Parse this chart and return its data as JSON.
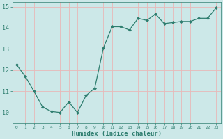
{
  "x": [
    0,
    1,
    2,
    3,
    4,
    5,
    6,
    7,
    8,
    9,
    10,
    11,
    12,
    13,
    14,
    15,
    16,
    17,
    18,
    19,
    20,
    21,
    22,
    23
  ],
  "y": [
    12.25,
    11.7,
    11.0,
    10.25,
    10.05,
    10.0,
    10.5,
    10.0,
    10.8,
    11.15,
    13.05,
    14.05,
    14.05,
    13.9,
    14.45,
    14.35,
    14.65,
    14.2,
    14.25,
    14.3,
    14.3,
    14.45,
    14.45,
    14.95
  ],
  "xlabel": "Humidex (Indice chaleur)",
  "ylim": [
    9.5,
    15.2
  ],
  "xlim": [
    -0.5,
    23.5
  ],
  "yticks": [
    10,
    11,
    12,
    13,
    14,
    15
  ],
  "xticks": [
    0,
    1,
    2,
    3,
    4,
    5,
    6,
    7,
    8,
    9,
    10,
    11,
    12,
    13,
    14,
    15,
    16,
    17,
    18,
    19,
    20,
    21,
    22,
    23
  ],
  "line_color": "#2d7d6e",
  "marker_color": "#2d7d6e",
  "bg_color": "#cce8e8",
  "grid_color": "#e8b8b8",
  "axes_bg": "#cce8e8",
  "spine_color": "#2d7d6e",
  "tick_label_color": "#2d7d6e",
  "xlabel_color": "#2d7d6e"
}
